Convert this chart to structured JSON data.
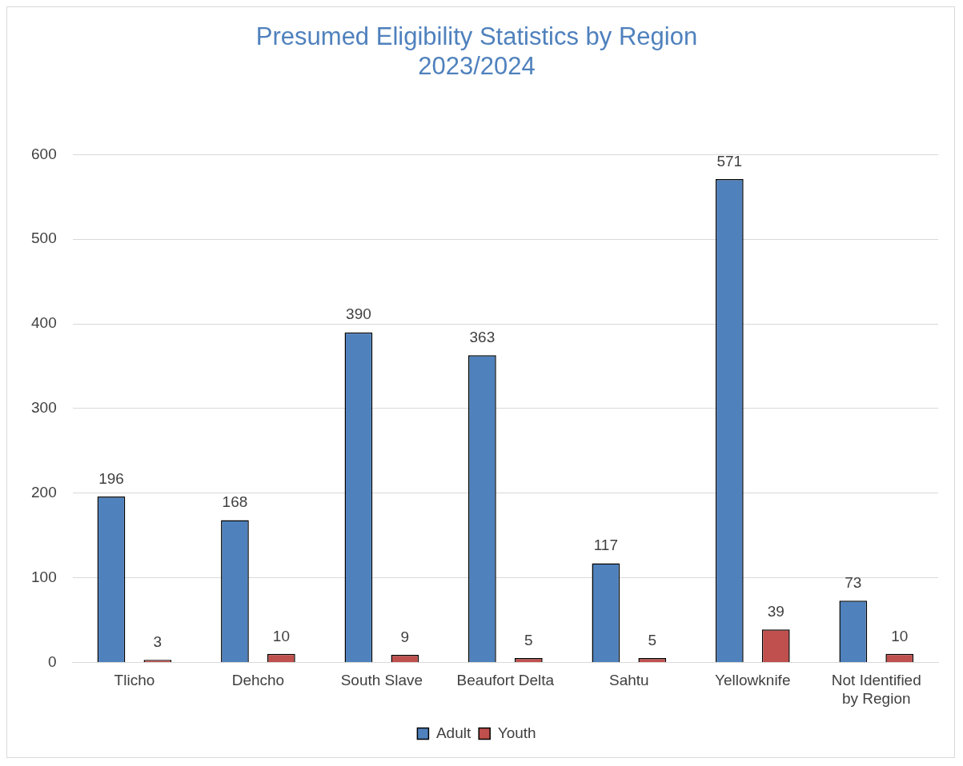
{
  "chart_data": {
    "type": "bar",
    "title": "Presumed Eligibility Statistics by Region\n2023/2024",
    "categories": [
      "Tlicho",
      "Dehcho",
      "South Slave",
      "Beaufort Delta",
      "Sahtu",
      "Yellowknife",
      "Not Identified by Region"
    ],
    "series": [
      {
        "name": "Adult",
        "color": "#4f81bd",
        "values": [
          196,
          168,
          390,
          363,
          117,
          571,
          73
        ]
      },
      {
        "name": "Youth",
        "color": "#c0504d",
        "values": [
          3,
          10,
          9,
          5,
          5,
          39,
          10
        ]
      }
    ],
    "ylim": [
      0,
      600
    ],
    "yticks": [
      0,
      100,
      200,
      300,
      400,
      500,
      600
    ],
    "grid": "y",
    "legend": "bottom",
    "data_labels": true
  }
}
